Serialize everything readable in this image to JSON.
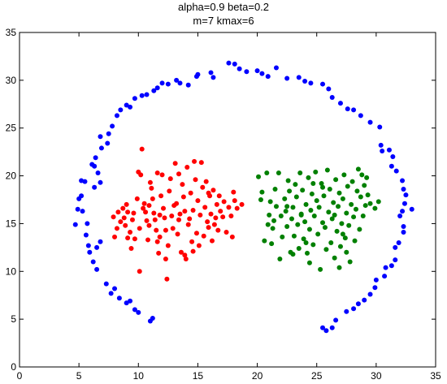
{
  "chart_data": {
    "type": "scatter",
    "title_line1": "alpha=0.9  beta=0.2",
    "title_line2": "m=7  kmax=6",
    "xlim": [
      0,
      35
    ],
    "ylim": [
      0,
      35
    ],
    "xticks": [
      0,
      5,
      10,
      15,
      20,
      25,
      30,
      35
    ],
    "yticks": [
      0,
      5,
      10,
      15,
      20,
      25,
      30,
      35
    ],
    "grid": false,
    "colors": {
      "outer": "#0000ff",
      "left": "#ff0000",
      "right": "#008000"
    },
    "series": [
      {
        "color_key": "outer",
        "points": [
          [
            4.7,
            14.9
          ],
          [
            4.9,
            16.5
          ],
          [
            5.0,
            17.6
          ],
          [
            5.2,
            17.9
          ],
          [
            5.2,
            19.5
          ],
          [
            5.5,
            19.4
          ],
          [
            5.3,
            16.3
          ],
          [
            5.6,
            13.8
          ],
          [
            5.8,
            12.7
          ],
          [
            5.9,
            12.0
          ],
          [
            6.2,
            11.0
          ],
          [
            6.5,
            10.2
          ],
          [
            6.5,
            12.5
          ],
          [
            6.8,
            13.1
          ],
          [
            5.7,
            15.0
          ],
          [
            6.1,
            21.2
          ],
          [
            6.3,
            21.0
          ],
          [
            6.4,
            21.9
          ],
          [
            6.9,
            22.9
          ],
          [
            6.8,
            24.1
          ],
          [
            7.5,
            24.4
          ],
          [
            7.8,
            25.2
          ],
          [
            8.2,
            26.3
          ],
          [
            8.5,
            26.9
          ],
          [
            9.0,
            27.4
          ],
          [
            9.3,
            27.2
          ],
          [
            9.7,
            28.1
          ],
          [
            10.3,
            28.4
          ],
          [
            10.7,
            28.5
          ],
          [
            11.3,
            28.9
          ],
          [
            11.6,
            29.2
          ],
          [
            12.0,
            29.7
          ],
          [
            12.5,
            29.6
          ],
          [
            13.2,
            30.0
          ],
          [
            13.5,
            29.7
          ],
          [
            14.2,
            29.5
          ],
          [
            14.9,
            30.4
          ],
          [
            15.0,
            30.6
          ],
          [
            16.1,
            30.8
          ],
          [
            16.3,
            30.3
          ],
          [
            17.6,
            31.8
          ],
          [
            18.1,
            31.7
          ],
          [
            18.5,
            31.2
          ],
          [
            19.1,
            30.9
          ],
          [
            20.0,
            31.0
          ],
          [
            20.4,
            30.7
          ],
          [
            20.9,
            30.4
          ],
          [
            21.6,
            31.3
          ],
          [
            22.5,
            30.2
          ],
          [
            23.5,
            30.3
          ],
          [
            24.0,
            29.9
          ],
          [
            24.5,
            29.7
          ],
          [
            25.5,
            29.6
          ],
          [
            26.0,
            29.1
          ],
          [
            26.3,
            28.2
          ],
          [
            27.0,
            27.6
          ],
          [
            27.6,
            27.0
          ],
          [
            28.1,
            26.9
          ],
          [
            28.7,
            26.3
          ],
          [
            29.5,
            25.6
          ],
          [
            30.3,
            25.1
          ],
          [
            30.4,
            23.2
          ],
          [
            30.5,
            22.6
          ],
          [
            31.1,
            22.7
          ],
          [
            31.4,
            22.0
          ],
          [
            31.3,
            21.0
          ],
          [
            31.7,
            20.5
          ],
          [
            32.2,
            19.5
          ],
          [
            32.3,
            18.6
          ],
          [
            32.5,
            18.0
          ],
          [
            32.4,
            17.1
          ],
          [
            32.2,
            16.3
          ],
          [
            32.0,
            15.8
          ],
          [
            32.3,
            14.7
          ],
          [
            32.3,
            14.1
          ],
          [
            33.0,
            16.5
          ],
          [
            31.9,
            13.0
          ],
          [
            31.6,
            12.5
          ],
          [
            31.6,
            11.2
          ],
          [
            31.3,
            10.6
          ],
          [
            30.8,
            10.4
          ],
          [
            30.7,
            9.5
          ],
          [
            30.0,
            9.1
          ],
          [
            29.9,
            8.3
          ],
          [
            29.5,
            7.6
          ],
          [
            29.0,
            7.0
          ],
          [
            28.5,
            6.6
          ],
          [
            28.1,
            6.1
          ],
          [
            27.5,
            5.8
          ],
          [
            26.6,
            4.9
          ],
          [
            26.3,
            4.1
          ],
          [
            25.8,
            3.8
          ],
          [
            25.5,
            4.1
          ],
          [
            8.0,
            8.2
          ],
          [
            7.7,
            7.7
          ],
          [
            7.3,
            8.7
          ],
          [
            8.4,
            7.2
          ],
          [
            9.0,
            6.7
          ],
          [
            9.3,
            6.9
          ],
          [
            9.7,
            6.0
          ],
          [
            10.0,
            5.7
          ],
          [
            11.0,
            4.8
          ],
          [
            11.2,
            5.1
          ],
          [
            6.8,
            19.3
          ],
          [
            6.6,
            20.3
          ],
          [
            7.4,
            23.4
          ],
          [
            6.3,
            18.8
          ]
        ]
      },
      {
        "color_key": "left",
        "points": [
          [
            7.9,
            15.7
          ],
          [
            8.0,
            13.6
          ],
          [
            8.2,
            14.5
          ],
          [
            8.3,
            16.2
          ],
          [
            8.5,
            15.2
          ],
          [
            8.7,
            16.6
          ],
          [
            8.8,
            15.6
          ],
          [
            8.9,
            14.8
          ],
          [
            9.0,
            17.0
          ],
          [
            9.1,
            16.2
          ],
          [
            9.3,
            14.1
          ],
          [
            9.4,
            12.4
          ],
          [
            9.5,
            15.4
          ],
          [
            9.6,
            16.1
          ],
          [
            9.7,
            13.4
          ],
          [
            9.9,
            17.6
          ],
          [
            10.0,
            20.4
          ],
          [
            10.1,
            10.0
          ],
          [
            10.1,
            14.5
          ],
          [
            10.2,
            20.1
          ],
          [
            10.3,
            22.8
          ],
          [
            10.4,
            16.6
          ],
          [
            10.5,
            17.1
          ],
          [
            10.6,
            16.2
          ],
          [
            10.7,
            15.3
          ],
          [
            10.8,
            13.3
          ],
          [
            10.9,
            14.8
          ],
          [
            11.0,
            19.3
          ],
          [
            11.1,
            18.7
          ],
          [
            11.2,
            17.6
          ],
          [
            11.3,
            16.1
          ],
          [
            11.4,
            15.4
          ],
          [
            11.5,
            14.3
          ],
          [
            11.6,
            13.1
          ],
          [
            11.7,
            11.9
          ],
          [
            11.8,
            15.9
          ],
          [
            11.9,
            17.9
          ],
          [
            12.0,
            20.1
          ],
          [
            12.1,
            16.6
          ],
          [
            12.2,
            15.6
          ],
          [
            12.3,
            14.3
          ],
          [
            12.4,
            9.2
          ],
          [
            12.5,
            12.7
          ],
          [
            12.6,
            18.4
          ],
          [
            12.7,
            19.7
          ],
          [
            12.8,
            15.8
          ],
          [
            12.9,
            14.5
          ],
          [
            13.0,
            16.9
          ],
          [
            13.1,
            21.3
          ],
          [
            13.2,
            17.1
          ],
          [
            13.3,
            13.9
          ],
          [
            13.4,
            15.4
          ],
          [
            13.5,
            16.0
          ],
          [
            13.6,
            12.0
          ],
          [
            13.7,
            19.1
          ],
          [
            13.8,
            17.8
          ],
          [
            13.9,
            16.3
          ],
          [
            14.0,
            11.3
          ],
          [
            14.1,
            20.9
          ],
          [
            14.2,
            14.9
          ],
          [
            14.3,
            15.5
          ],
          [
            14.4,
            18.2
          ],
          [
            14.5,
            13.1
          ],
          [
            14.6,
            16.4
          ],
          [
            14.7,
            21.5
          ],
          [
            14.8,
            19.6
          ],
          [
            14.9,
            14.0
          ],
          [
            15.0,
            17.4
          ],
          [
            15.1,
            12.7
          ],
          [
            15.2,
            15.9
          ],
          [
            15.3,
            21.4
          ],
          [
            15.4,
            18.8
          ],
          [
            15.5,
            13.7
          ],
          [
            15.6,
            16.7
          ],
          [
            15.7,
            19.4
          ],
          [
            15.8,
            15.2
          ],
          [
            15.9,
            14.6
          ],
          [
            16.0,
            17.9
          ],
          [
            16.1,
            16.0
          ],
          [
            16.2,
            13.2
          ],
          [
            16.3,
            18.5
          ],
          [
            16.5,
            15.6
          ],
          [
            16.6,
            17.0
          ],
          [
            16.7,
            14.3
          ],
          [
            16.8,
            17.9
          ],
          [
            16.9,
            16.3
          ],
          [
            17.1,
            15.7
          ],
          [
            17.2,
            17.3
          ],
          [
            17.4,
            14.1
          ],
          [
            17.6,
            16.7
          ],
          [
            17.8,
            15.8
          ],
          [
            18.0,
            18.3
          ],
          [
            18.1,
            17.4
          ],
          [
            18.3,
            16.6
          ],
          [
            18.7,
            17.0
          ],
          [
            17.9,
            13.6
          ],
          [
            11.6,
            20.3
          ],
          [
            11.8,
            13.6
          ],
          [
            12.3,
            11.3
          ],
          [
            13.9,
            11.7
          ],
          [
            14.6,
            12.1
          ],
          [
            10.9,
            16.9
          ],
          [
            13.4,
            20.2
          ],
          [
            15.9,
            18.2
          ],
          [
            9.1,
            13.5
          ],
          [
            16.4,
            14.9
          ]
        ]
      },
      {
        "color_key": "right",
        "points": [
          [
            20.1,
            19.9
          ],
          [
            20.3,
            17.5
          ],
          [
            20.4,
            18.3
          ],
          [
            20.6,
            13.2
          ],
          [
            20.8,
            20.3
          ],
          [
            21.0,
            15.9
          ],
          [
            21.1,
            17.3
          ],
          [
            21.2,
            12.9
          ],
          [
            21.3,
            14.5
          ],
          [
            21.5,
            18.6
          ],
          [
            21.6,
            16.8
          ],
          [
            21.8,
            20.3
          ],
          [
            21.9,
            11.3
          ],
          [
            22.0,
            15.8
          ],
          [
            22.1,
            13.6
          ],
          [
            22.3,
            17.6
          ],
          [
            22.4,
            16.3
          ],
          [
            22.5,
            14.7
          ],
          [
            22.6,
            19.5
          ],
          [
            22.7,
            18.4
          ],
          [
            22.8,
            12.0
          ],
          [
            22.9,
            15.5
          ],
          [
            23.0,
            16.7
          ],
          [
            23.1,
            13.7
          ],
          [
            23.2,
            19.1
          ],
          [
            23.3,
            17.8
          ],
          [
            23.4,
            14.9
          ],
          [
            23.5,
            12.4
          ],
          [
            23.6,
            20.3
          ],
          [
            23.7,
            16.0
          ],
          [
            23.8,
            18.5
          ],
          [
            23.9,
            13.4
          ],
          [
            24.0,
            15.2
          ],
          [
            24.1,
            17.0
          ],
          [
            24.2,
            11.9
          ],
          [
            24.3,
            19.8
          ],
          [
            24.4,
            14.4
          ],
          [
            24.5,
            16.4
          ],
          [
            24.6,
            18.1
          ],
          [
            24.7,
            12.8
          ],
          [
            24.8,
            15.8
          ],
          [
            24.9,
            20.4
          ],
          [
            25.0,
            17.4
          ],
          [
            25.1,
            13.9
          ],
          [
            25.2,
            16.7
          ],
          [
            25.3,
            10.2
          ],
          [
            25.4,
            19.2
          ],
          [
            25.5,
            15.1
          ],
          [
            25.6,
            17.9
          ],
          [
            25.7,
            14.6
          ],
          [
            25.8,
            12.3
          ],
          [
            25.9,
            20.6
          ],
          [
            26.0,
            16.2
          ],
          [
            26.1,
            18.6
          ],
          [
            26.2,
            13.0
          ],
          [
            26.3,
            15.5
          ],
          [
            26.4,
            17.2
          ],
          [
            26.5,
            11.4
          ],
          [
            26.6,
            19.6
          ],
          [
            26.7,
            14.2
          ],
          [
            26.8,
            16.8
          ],
          [
            26.9,
            18.2
          ],
          [
            27.0,
            12.6
          ],
          [
            27.1,
            15.0
          ],
          [
            27.2,
            17.6
          ],
          [
            27.3,
            20.1
          ],
          [
            27.4,
            13.5
          ],
          [
            27.5,
            16.1
          ],
          [
            27.6,
            18.9
          ],
          [
            27.7,
            14.8
          ],
          [
            27.8,
            11.0
          ],
          [
            27.9,
            17.0
          ],
          [
            28.0,
            19.4
          ],
          [
            28.1,
            15.7
          ],
          [
            28.2,
            13.2
          ],
          [
            28.3,
            16.5
          ],
          [
            28.4,
            18.4
          ],
          [
            28.5,
            20.7
          ],
          [
            28.6,
            14.4
          ],
          [
            28.7,
            17.8
          ],
          [
            28.9,
            15.8
          ],
          [
            29.0,
            19.0
          ],
          [
            29.1,
            16.9
          ],
          [
            29.3,
            18.0
          ],
          [
            29.5,
            17.1
          ],
          [
            29.9,
            16.6
          ],
          [
            30.2,
            17.3
          ],
          [
            23.0,
            11.8
          ],
          [
            24.4,
            10.9
          ],
          [
            26.9,
            10.4
          ],
          [
            22.5,
            16.8
          ],
          [
            21.4,
            15.3
          ],
          [
            24.7,
            19.2
          ],
          [
            27.2,
            13.9
          ],
          [
            28.8,
            20.1
          ],
          [
            25.5,
            18.8
          ],
          [
            23.7,
            15.9
          ],
          [
            26.5,
            15.9
          ],
          [
            20.9,
            14.9
          ],
          [
            24.1,
            13.0
          ],
          [
            27.5,
            12.0
          ],
          [
            29.2,
            19.8
          ]
        ]
      }
    ]
  }
}
